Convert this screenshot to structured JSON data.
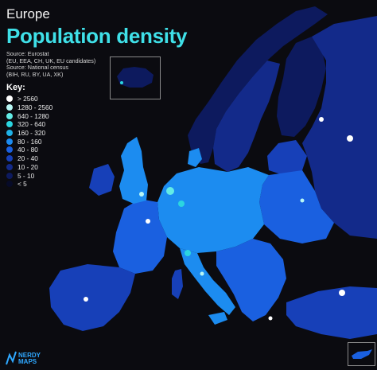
{
  "header": {
    "region": "Europe",
    "title": "Population density"
  },
  "sources": {
    "line1": "Source: Eurostat",
    "line2": "(EU, EEA, CH, UK, EU candidates)",
    "line3": "Source: National census",
    "line4": "(BIH, RU, BY, UA, XK)"
  },
  "legend": {
    "title": "Key:",
    "items": [
      {
        "label": "> 2560",
        "color": "#ffffff"
      },
      {
        "label": "1280 - 2560",
        "color": "#b8f7f5"
      },
      {
        "label": "640 - 1280",
        "color": "#63ece6"
      },
      {
        "label": "320 - 640",
        "color": "#2bd5e0"
      },
      {
        "label": "160 - 320",
        "color": "#1fb2e8"
      },
      {
        "label": "80 - 160",
        "color": "#1c8cf0"
      },
      {
        "label": "40 - 80",
        "color": "#1a60e0"
      },
      {
        "label": "20 - 40",
        "color": "#1740b8"
      },
      {
        "label": "10 - 20",
        "color": "#132a8a"
      },
      {
        "label": "5 - 10",
        "color": "#0d1a5e"
      },
      {
        "label": "< 5",
        "color": "#070b28"
      }
    ]
  },
  "colors": {
    "background": "#0b0b10",
    "title_accent": "#3fe0e8"
  },
  "logo": {
    "line1": "NERDY",
    "line2": "MAPS"
  }
}
